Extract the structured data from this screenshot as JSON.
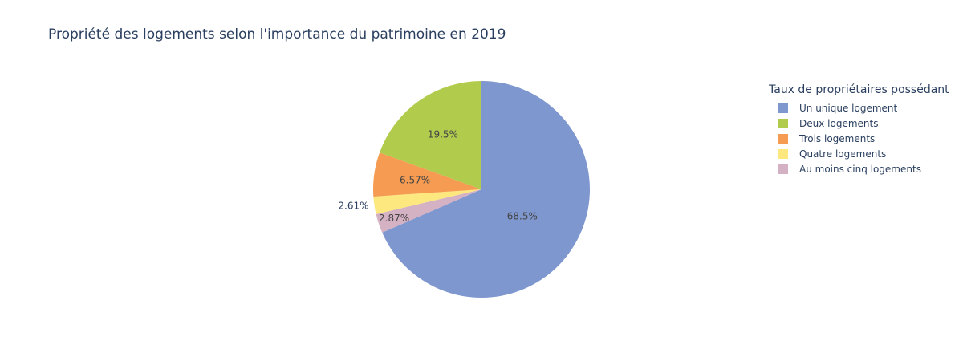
{
  "chart_data": {
    "type": "pie",
    "title": "Propriété des logements selon l'importance du patrimoine en 2019",
    "legend_title": "Taux de propriétaires possédant",
    "legend_position": "right",
    "start": "top",
    "direction": "clockwise",
    "slices": [
      {
        "label": "Un unique logement",
        "value": 68.5,
        "text": "68.5%",
        "color": "#7f97cf"
      },
      {
        "label": "Au moins cinq logements",
        "value": 2.87,
        "text": "2.87%",
        "color": "#d4b1c3"
      },
      {
        "label": "Quatre logements",
        "value": 2.61,
        "text": "2.61%",
        "color": "#fde77f"
      },
      {
        "label": "Trois logements",
        "value": 6.57,
        "text": "6.57%",
        "color": "#f59c52"
      },
      {
        "label": "Deux logements",
        "value": 19.5,
        "text": "19.5%",
        "color": "#b1cb4d"
      }
    ],
    "legend_order": [
      "Un unique logement",
      "Deux logements",
      "Trois logements",
      "Quatre logements",
      "Au moins cinq logements"
    ]
  }
}
